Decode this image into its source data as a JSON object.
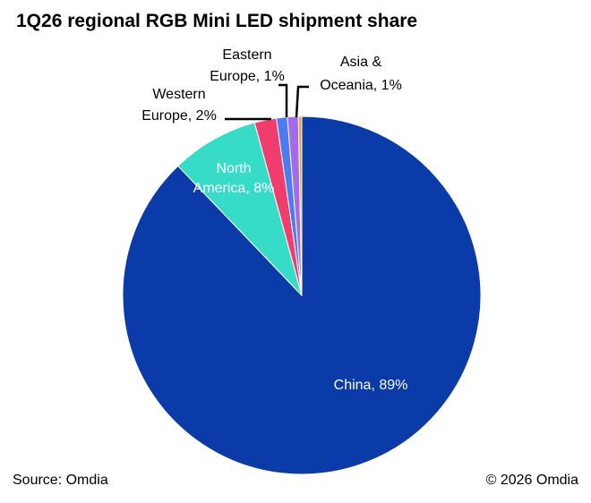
{
  "chart_data": {
    "type": "pie",
    "title": "1Q26 regional RGB Mini LED shipment share",
    "slices": [
      {
        "label_lines": [
          "China, 89%"
        ],
        "value": 89,
        "color": "#0B3BA8",
        "label_color": "#ffffff"
      },
      {
        "label_lines": [
          "North",
          "America, 8%"
        ],
        "value": 8,
        "color": "#37DCC8",
        "label_color": "#ffffff"
      },
      {
        "label_lines": [
          "Western",
          "Europe, 2%"
        ],
        "value": 2,
        "color": "#F03D6E",
        "label_color": "#000000"
      },
      {
        "label_lines": [
          "Eastern",
          "Europe, 1%"
        ],
        "value": 1,
        "color": "#4C7CF0",
        "label_color": "#000000"
      },
      {
        "label_lines": [
          "Asia &",
          "Oceania, 1%"
        ],
        "value": 1,
        "color": "#A46BE8",
        "label_color": "#000000"
      },
      {
        "label_lines": [],
        "value": 0.3,
        "color": "#E8A33C",
        "label_color": "#000000"
      }
    ]
  },
  "footer": {
    "source": "Source: Omdia",
    "copyright": "© 2026 Omdia"
  }
}
